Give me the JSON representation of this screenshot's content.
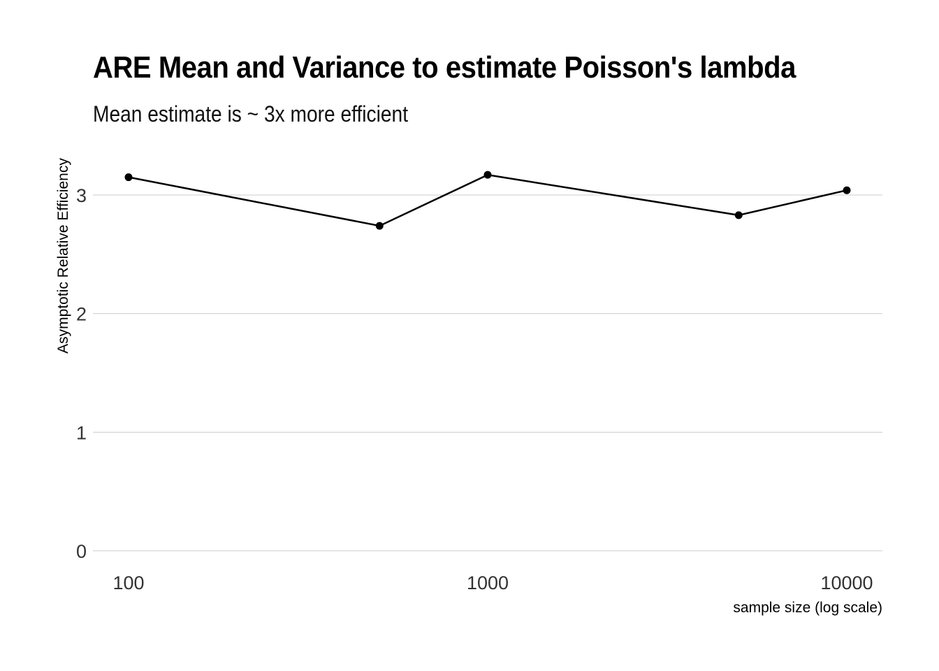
{
  "chart_data": {
    "type": "line",
    "title": "ARE Mean and Variance to estimate Poisson's lambda",
    "subtitle": "Mean estimate is ~ 3x more efficient",
    "xlabel": "sample size (log scale)",
    "ylabel": "Asymptotic Relative Efficiency",
    "x_scale": "log10",
    "xlim": [
      80,
      12500
    ],
    "ylim": [
      0,
      3.3
    ],
    "x_ticks": [
      100,
      1000,
      10000
    ],
    "x_tick_labels": [
      "100",
      "1000",
      "10000"
    ],
    "y_ticks": [
      0,
      1,
      2,
      3
    ],
    "y_tick_labels": [
      "0",
      "1",
      "2",
      "3"
    ],
    "grid": "horizontal major lines only",
    "legend": "none",
    "series": [
      {
        "x": [
          100,
          500,
          1000,
          5000,
          10000
        ],
        "y": [
          3.15,
          2.74,
          3.17,
          2.83,
          3.04
        ]
      }
    ],
    "colors": {
      "line": "#000000",
      "points": "#000000",
      "grid": "#cccccc",
      "tick_text": "#333333"
    }
  }
}
